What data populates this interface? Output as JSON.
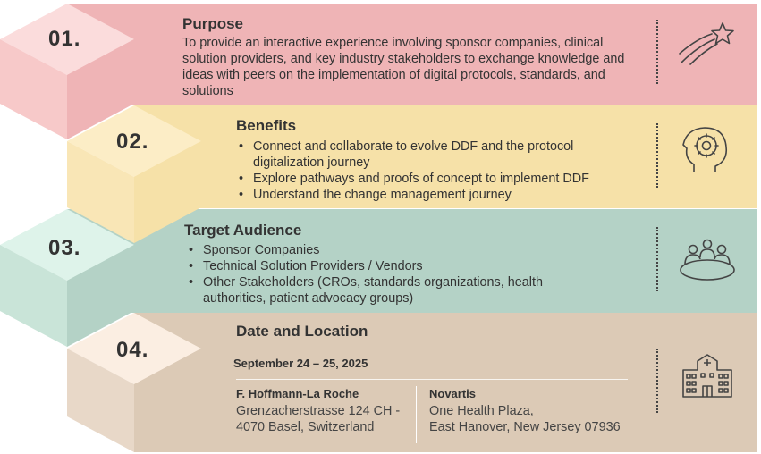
{
  "sections": [
    {
      "number": "01.",
      "title": "Purpose",
      "text": "To provide an interactive experience involving sponsor companies, clinical solution providers, and key industry stakeholders to exchange knowledge and ideas with peers on the implementation of digital protocols, standards, and solutions",
      "icon": "shooting-star-icon",
      "color": "#efb4b6"
    },
    {
      "number": "02.",
      "title": "Benefits",
      "bullets": [
        "Connect and collaborate to evolve DDF and the protocol digitalization journey",
        "Explore pathways and proofs of concept to implement DDF",
        "Understand the change management journey"
      ],
      "icon": "head-brain-gear-icon",
      "color": "#f6e1a8"
    },
    {
      "number": "03.",
      "title": "Target Audience",
      "bullets": [
        "Sponsor Companies",
        "Technical Solution Providers / Vendors",
        "Other Stakeholders (CROs, standards organizations, health authorities, patient advocacy groups)"
      ],
      "icon": "meeting-table-icon",
      "color": "#b4d2c6"
    },
    {
      "number": "04.",
      "title": "Date and Location",
      "date": "September 24 – 25, 2025",
      "locations": [
        {
          "name": "F. Hoffmann-La Roche",
          "line1": "Grenzacherstrasse 124 CH -",
          "line2": "4070 Basel, Switzerland"
        },
        {
          "name": "Novartis",
          "line1": "One Health Plaza,",
          "line2": "East Hanover, New Jersey 07936"
        }
      ],
      "icon": "hospital-building-icon",
      "color": "#dccab6"
    }
  ]
}
